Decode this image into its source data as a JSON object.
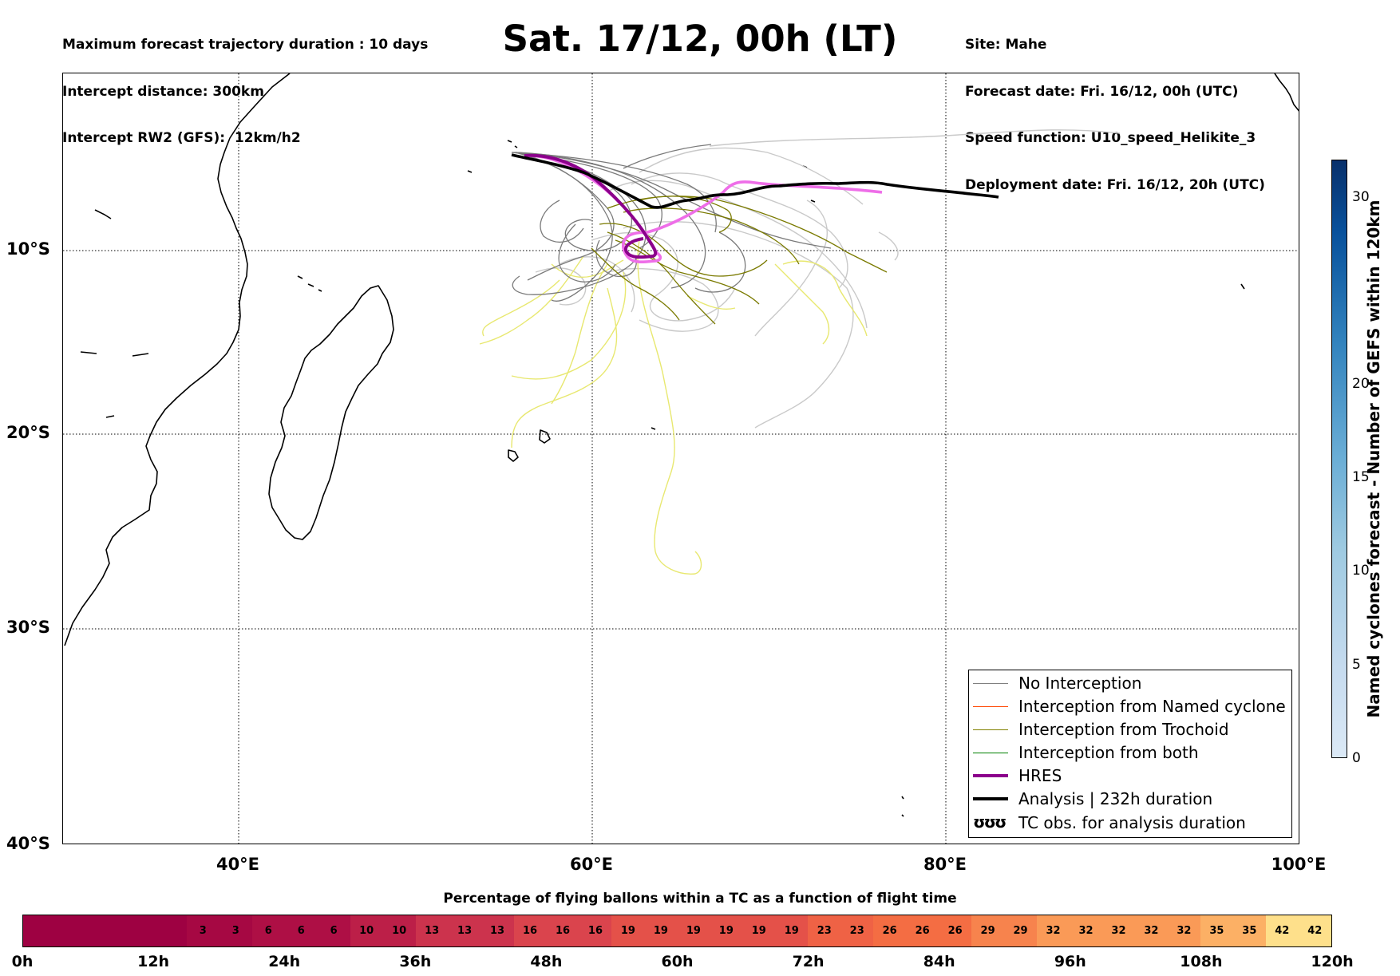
{
  "header": {
    "left_lines": [
      "Maximum forecast trajectory duration : 10 days",
      "Intercept distance: 300km",
      "Intercept RW2 (GFS):  12km/h2"
    ],
    "title": "Sat. 17/12, 00h (LT)",
    "right_lines": [
      "Site: Mahe",
      "Forecast date: Fri. 16/12, 00h (UTC)",
      "Speed function: U10_speed_Helikite_3",
      "Deployment date: Fri. 16/12, 20h (UTC)"
    ]
  },
  "map": {
    "lat_labels": [
      "10°S",
      "20°S",
      "30°S",
      "40°S"
    ],
    "lon_labels": [
      "40°E",
      "60°E",
      "80°E",
      "100°E"
    ],
    "colors": {
      "no_interception": "#7a7a7a",
      "light_gray": "#c9c9c9",
      "trochoid": "#7a7a00",
      "yellow": "#e8e870",
      "hres": "#8b008b",
      "magenta": "#ee6ee8",
      "analysis": "#000000"
    }
  },
  "legend": {
    "items": [
      {
        "label": "No Interception",
        "color": "#808080",
        "width": 1.2
      },
      {
        "label": "Interception from Named cyclone",
        "color": "#ff4500",
        "width": 1.2
      },
      {
        "label": "Interception from Trochoid",
        "color": "#808000",
        "width": 1.2
      },
      {
        "label": "Interception from both",
        "color": "#008000",
        "width": 1.2
      },
      {
        "label": "HRES",
        "color": "#8b008b",
        "width": 4
      },
      {
        "label": "Analysis | 232h duration",
        "color": "#000000",
        "width": 4
      },
      {
        "label": "TC obs. for analysis duration",
        "color": "#000000",
        "width": 0,
        "icon": "ʊʊʊ"
      }
    ]
  },
  "vertical_colorbar": {
    "label": "Named cyclones forecast - Number of GEFS within 120km",
    "ticks": [
      "0",
      "5",
      "10",
      "15",
      "20",
      "30"
    ]
  },
  "horizontal_colorbar": {
    "title": "Percentage of flying ballons within a TC as a function of flight time",
    "cells": [
      "",
      "",
      "",
      "",
      "",
      "3",
      "3",
      "6",
      "6",
      "6",
      "10",
      "10",
      "13",
      "13",
      "13",
      "16",
      "16",
      "16",
      "19",
      "19",
      "19",
      "19",
      "19",
      "19",
      "23",
      "23",
      "26",
      "26",
      "26",
      "29",
      "29",
      "32",
      "32",
      "32",
      "32",
      "32",
      "35",
      "35",
      "42",
      "42"
    ],
    "time_labels": [
      "0h",
      "12h",
      "24h",
      "36h",
      "48h",
      "60h",
      "72h",
      "84h",
      "96h",
      "108h",
      "120h"
    ]
  }
}
